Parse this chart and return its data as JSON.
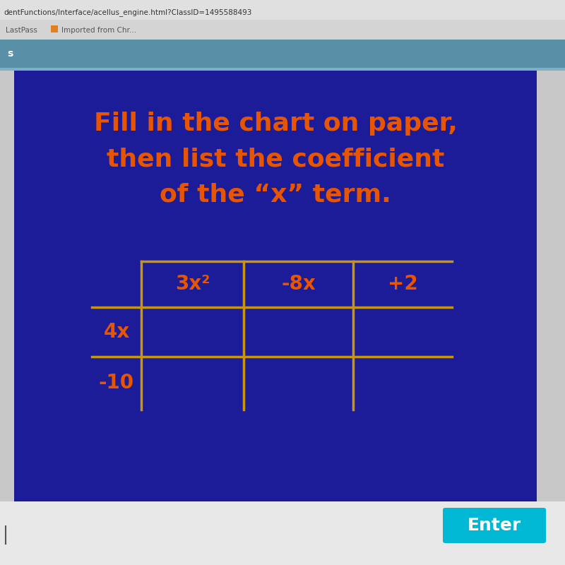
{
  "bg_color": "#1c1c99",
  "outer_bg_top": "#c8c8c8",
  "outer_bg_mid": "#5a8fa8",
  "outer_bg_bottom": "#e8e8e8",
  "line_color": "#c8960a",
  "text_color": "#e85500",
  "title_lines": [
    "Fill in the chart on paper,",
    "then list the coefficient",
    "of the “x” term."
  ],
  "title_fontsize": 26,
  "col_headers": [
    "3x²",
    "-8x",
    "+2"
  ],
  "row_headers": [
    "4x",
    "-10"
  ],
  "enter_btn_color": "#00b8d4",
  "enter_btn_text": "Enter",
  "url_text": "dentFunctions/Interface/acellus_engine.html?ClassID=1495588493",
  "bookmark_text": "LastPass    ■  Imported from Chr...",
  "nav_text": "s"
}
